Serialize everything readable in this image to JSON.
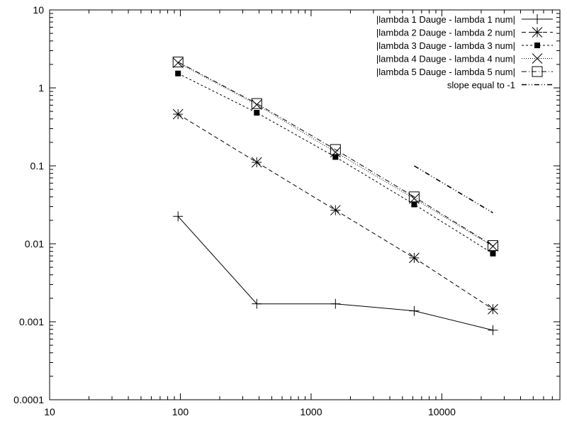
{
  "chart_data": {
    "type": "line",
    "title": "",
    "xlabel": "",
    "ylabel": "",
    "x_scale": "log",
    "y_scale": "log",
    "xlim": [
      10,
      80000
    ],
    "ylim": [
      0.0001,
      10
    ],
    "x_tick_values": [
      10,
      100,
      1000,
      10000
    ],
    "x_tick_labels": [
      "10",
      "100",
      "1000",
      "10000"
    ],
    "y_tick_values": [
      0.0001,
      0.001,
      0.01,
      0.1,
      1,
      10
    ],
    "y_tick_labels": [
      "0.0001",
      "0.001",
      "0.01",
      "0.1",
      "1",
      "10"
    ],
    "legend_position": "top-right",
    "grid": false,
    "series": [
      {
        "name": "|lambda 1 Dauge - lambda 1 num|",
        "marker": "plus",
        "dash": "solid",
        "x": [
          96,
          384,
          1536,
          6144,
          24576
        ],
        "y": [
          0.0225,
          0.0017,
          0.0017,
          0.00138,
          0.00078
        ]
      },
      {
        "name": "|lambda 2 Dauge - lambda 2 num|",
        "marker": "asterisk",
        "dash": "dashed",
        "x": [
          96,
          384,
          1536,
          6144,
          24576
        ],
        "y": [
          0.46,
          0.111,
          0.027,
          0.0066,
          0.00145
        ]
      },
      {
        "name": "|lambda 3 Dauge - lambda 3 num|",
        "marker": "filled-square",
        "dash": "short-dash",
        "x": [
          96,
          384,
          1536,
          6144,
          24576
        ],
        "y": [
          1.53,
          0.48,
          0.13,
          0.032,
          0.0075
        ]
      },
      {
        "name": "|lambda 4 Dauge - lambda 4 num|",
        "marker": "cross",
        "dash": "dotted",
        "x": [
          96,
          384,
          1536,
          6144,
          24576
        ],
        "y": [
          2.1,
          0.61,
          0.15,
          0.038,
          0.0093
        ]
      },
      {
        "name": "|lambda 5 Dauge - lambda 5 num|",
        "marker": "open-square",
        "dash": "dash-dot",
        "x": [
          96,
          384,
          1536,
          6144,
          24576
        ],
        "y": [
          2.15,
          0.63,
          0.162,
          0.04,
          0.0095
        ]
      },
      {
        "name": "slope equal to -1",
        "marker": "none",
        "dash": "dash-dot-dot",
        "x": [
          6144,
          24576
        ],
        "y": [
          0.1,
          0.025
        ]
      }
    ]
  }
}
